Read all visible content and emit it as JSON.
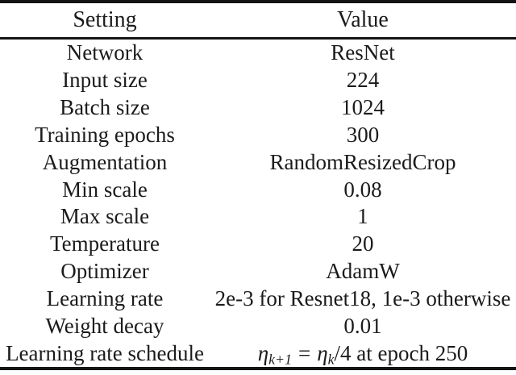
{
  "table": {
    "columns": [
      "Setting",
      "Value"
    ],
    "rows": [
      {
        "setting": "Network",
        "value": "ResNet"
      },
      {
        "setting": "Input size",
        "value": "224"
      },
      {
        "setting": "Batch size",
        "value": "1024"
      },
      {
        "setting": "Training epochs",
        "value": "300"
      },
      {
        "setting": "Augmentation",
        "value": "RandomResizedCrop"
      },
      {
        "setting": "Min scale",
        "value": "0.08"
      },
      {
        "setting": "Max scale",
        "value": "1"
      },
      {
        "setting": "Temperature",
        "value": "20"
      },
      {
        "setting": "Optimizer",
        "value": "AdamW"
      },
      {
        "setting": "Learning rate",
        "value": "2e-3 for Resnet18, 1e-3 otherwise"
      },
      {
        "setting": "Weight decay",
        "value": "0.01"
      },
      {
        "setting": "Learning rate schedule",
        "value": "η_(k+1) = η_k/4 at epoch 250"
      }
    ],
    "lr_schedule_math": {
      "eta": "η",
      "sub_k_plus_1": "k+1",
      "equals": "=",
      "sub_k": "k",
      "tail": "/4 at epoch 250"
    }
  },
  "colors": {
    "background": "#ffffff",
    "text": "#1b1b1b",
    "rule": "#141414"
  }
}
